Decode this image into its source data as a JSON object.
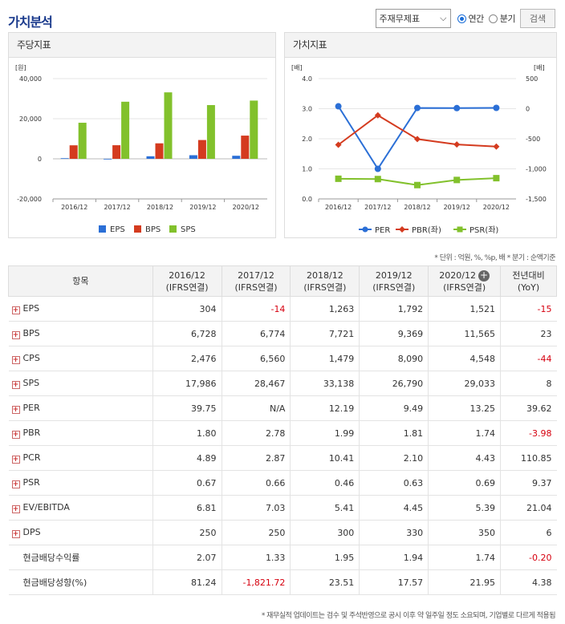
{
  "header": {
    "title": "가치분석",
    "select_value": "주재무제표",
    "radio_annual": "연간",
    "radio_quarter": "분기",
    "search_label": "검색"
  },
  "per_share_panel": {
    "title": "주당지표"
  },
  "value_panel": {
    "title": "가치지표"
  },
  "chart_data": [
    {
      "type": "bar",
      "title": "주당지표",
      "ylabel": "[원]",
      "ylim": [
        -20000,
        40000
      ],
      "yticks": [
        "40,000",
        "20,000",
        "0",
        "-20,000"
      ],
      "categories": [
        "2016/12",
        "2017/12",
        "2018/12",
        "2019/12",
        "2020/12"
      ],
      "series": [
        {
          "name": "EPS",
          "color": "#2b6fd6",
          "values": [
            304,
            -14,
            1263,
            1792,
            1521
          ]
        },
        {
          "name": "BPS",
          "color": "#d43b1f",
          "values": [
            6728,
            6774,
            7721,
            9369,
            11565
          ]
        },
        {
          "name": "SPS",
          "color": "#82c12c",
          "values": [
            17986,
            28467,
            33138,
            26790,
            29033
          ]
        }
      ],
      "legend": "bottom"
    },
    {
      "type": "line",
      "title": "가치지표",
      "ylabel_left": "[배]",
      "ylabel_right": "[배]",
      "ylim_left": [
        0,
        4
      ],
      "ylim_right": [
        -1500,
        500
      ],
      "yticks_left": [
        "4.0",
        "3.0",
        "2.0",
        "1.0",
        "0.0"
      ],
      "yticks_right": [
        "500",
        "0",
        "-500",
        "-1,000",
        "-1,500"
      ],
      "categories": [
        "2016/12",
        "2017/12",
        "2018/12",
        "2019/12",
        "2020/12"
      ],
      "series": [
        {
          "name": "PER",
          "axis": "right",
          "color": "#2b6fd6",
          "marker": "circle",
          "values": [
            39.75,
            -1000,
            12.19,
            9.49,
            13.25
          ]
        },
        {
          "name": "PBR(좌)",
          "axis": "left",
          "color": "#d43b1f",
          "marker": "diamond",
          "values": [
            1.8,
            2.78,
            1.99,
            1.81,
            1.74
          ]
        },
        {
          "name": "PSR(좌)",
          "axis": "left",
          "color": "#82c12c",
          "marker": "square",
          "values": [
            0.67,
            0.66,
            0.46,
            0.63,
            0.69
          ]
        }
      ],
      "legend": "bottom"
    }
  ],
  "note": "* 단위 : 억원, %, %p, 배    * 분기 : 순액기준",
  "table": {
    "header_item": "항목",
    "columns": [
      {
        "year": "2016/12",
        "basis": "(IFRS연결)"
      },
      {
        "year": "2017/12",
        "basis": "(IFRS연결)"
      },
      {
        "year": "2018/12",
        "basis": "(IFRS연결)"
      },
      {
        "year": "2019/12",
        "basis": "(IFRS연결)"
      },
      {
        "year": "2020/12",
        "basis": "(IFRS연결)"
      }
    ],
    "yoy_header": "전년대비",
    "yoy_sub": "(YoY)",
    "rows": [
      {
        "label": "EPS",
        "icon": true,
        "values": [
          "304",
          "-14",
          "1,263",
          "1,792",
          "1,521"
        ],
        "yoy": "-15"
      },
      {
        "label": "BPS",
        "icon": true,
        "values": [
          "6,728",
          "6,774",
          "7,721",
          "9,369",
          "11,565"
        ],
        "yoy": "23"
      },
      {
        "label": "CPS",
        "icon": true,
        "values": [
          "2,476",
          "6,560",
          "1,479",
          "8,090",
          "4,548"
        ],
        "yoy": "-44"
      },
      {
        "label": "SPS",
        "icon": true,
        "values": [
          "17,986",
          "28,467",
          "33,138",
          "26,790",
          "29,033"
        ],
        "yoy": "8"
      },
      {
        "label": "PER",
        "icon": true,
        "values": [
          "39.75",
          "N/A",
          "12.19",
          "9.49",
          "13.25"
        ],
        "yoy": "39.62"
      },
      {
        "label": "PBR",
        "icon": true,
        "values": [
          "1.80",
          "2.78",
          "1.99",
          "1.81",
          "1.74"
        ],
        "yoy": "-3.98"
      },
      {
        "label": "PCR",
        "icon": true,
        "values": [
          "4.89",
          "2.87",
          "10.41",
          "2.10",
          "4.43"
        ],
        "yoy": "110.85"
      },
      {
        "label": "PSR",
        "icon": true,
        "values": [
          "0.67",
          "0.66",
          "0.46",
          "0.63",
          "0.69"
        ],
        "yoy": "9.37"
      },
      {
        "label": "EV/EBITDA",
        "icon": true,
        "values": [
          "6.81",
          "7.03",
          "5.41",
          "4.45",
          "5.39"
        ],
        "yoy": "21.04"
      },
      {
        "label": "DPS",
        "icon": true,
        "values": [
          "250",
          "250",
          "300",
          "330",
          "350"
        ],
        "yoy": "6"
      },
      {
        "label": "현금배당수익률",
        "icon": false,
        "values": [
          "2.07",
          "1.33",
          "1.95",
          "1.94",
          "1.74"
        ],
        "yoy": "-0.20"
      },
      {
        "label": "현금배당성향(%)",
        "icon": false,
        "values": [
          "81.24",
          "-1,821.72",
          "23.51",
          "17.57",
          "21.95"
        ],
        "yoy": "4.38"
      }
    ]
  },
  "footer": "* 재무실적 업데이트는 검수 및 주석반영으로 공시 이후 약 일주일 정도 소요되며, 기업별로 다르게 적용됨"
}
